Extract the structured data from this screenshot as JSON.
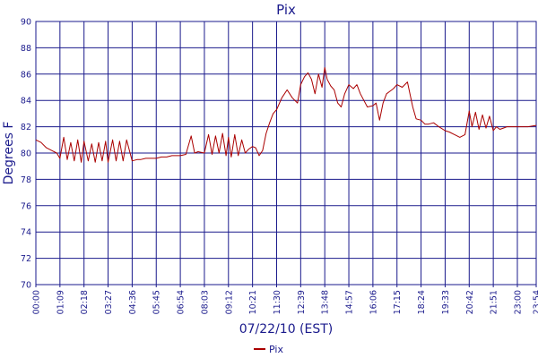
{
  "chart_data": {
    "type": "line",
    "title": "Pix",
    "xlabel": "07/22/10 (EST)",
    "ylabel": "Degrees F",
    "ylim": [
      70,
      90
    ],
    "yticks": [
      70,
      72,
      74,
      76,
      78,
      80,
      82,
      84,
      86,
      88,
      90
    ],
    "xlim": [
      "00:00",
      "23:54"
    ],
    "xticks": [
      "00:00",
      "01:09",
      "02:18",
      "03:27",
      "04:36",
      "05:45",
      "06:54",
      "08:03",
      "09:12",
      "10:21",
      "11:30",
      "12:39",
      "13:48",
      "14:57",
      "16:06",
      "17:15",
      "18:24",
      "19:33",
      "20:42",
      "21:51",
      "23:00",
      "23:54"
    ],
    "grid": true,
    "legend": "bottom-center",
    "colors": {
      "line": "#aa0000",
      "grid": "#1a1a8c",
      "text": "#1a1a8c"
    },
    "series": [
      {
        "name": "Pix",
        "x": [
          "00:00",
          "00:15",
          "00:30",
          "00:45",
          "01:00",
          "01:09",
          "01:20",
          "01:30",
          "01:40",
          "01:50",
          "02:00",
          "02:10",
          "02:18",
          "02:30",
          "02:40",
          "02:50",
          "03:00",
          "03:10",
          "03:20",
          "03:27",
          "03:40",
          "03:50",
          "04:00",
          "04:10",
          "04:20",
          "04:36",
          "04:50",
          "05:00",
          "05:15",
          "05:30",
          "05:45",
          "06:00",
          "06:15",
          "06:30",
          "06:54",
          "07:10",
          "07:25",
          "07:35",
          "07:45",
          "08:03",
          "08:15",
          "08:25",
          "08:35",
          "08:45",
          "08:55",
          "09:05",
          "09:12",
          "09:20",
          "09:30",
          "09:40",
          "09:50",
          "10:00",
          "10:10",
          "10:21",
          "10:30",
          "10:40",
          "10:50",
          "11:00",
          "11:10",
          "11:20",
          "11:30",
          "11:45",
          "12:00",
          "12:15",
          "12:30",
          "12:39",
          "12:50",
          "13:00",
          "13:10",
          "13:20",
          "13:30",
          "13:40",
          "13:48",
          "13:55",
          "14:05",
          "14:15",
          "14:25",
          "14:35",
          "14:45",
          "14:57",
          "15:10",
          "15:20",
          "15:30",
          "15:40",
          "15:50",
          "16:06",
          "16:15",
          "16:25",
          "16:35",
          "16:45",
          "16:55",
          "17:05",
          "17:15",
          "17:30",
          "17:45",
          "18:00",
          "18:10",
          "18:24",
          "18:35",
          "18:45",
          "19:00",
          "19:15",
          "19:33",
          "19:45",
          "20:00",
          "20:15",
          "20:30",
          "20:42",
          "20:50",
          "21:00",
          "21:10",
          "21:20",
          "21:30",
          "21:40",
          "21:51",
          "22:00",
          "22:10",
          "22:20",
          "22:30",
          "23:00",
          "23:30",
          "23:54"
        ],
        "values": [
          81.0,
          80.8,
          80.4,
          80.2,
          80.0,
          79.6,
          81.2,
          79.5,
          80.8,
          79.4,
          81.0,
          79.3,
          80.9,
          79.4,
          80.7,
          79.3,
          80.8,
          79.4,
          80.9,
          79.3,
          81.0,
          79.4,
          80.9,
          79.4,
          81.0,
          79.4,
          79.5,
          79.5,
          79.6,
          79.6,
          79.6,
          79.7,
          79.7,
          79.8,
          79.8,
          79.9,
          81.3,
          80.0,
          80.1,
          80.0,
          81.4,
          79.9,
          81.3,
          80.0,
          81.5,
          79.8,
          81.2,
          79.7,
          81.4,
          79.8,
          81.0,
          80.0,
          80.3,
          80.5,
          80.4,
          79.8,
          80.2,
          81.5,
          82.3,
          83.0,
          83.3,
          84.2,
          84.8,
          84.2,
          83.8,
          85.2,
          85.8,
          86.1,
          85.6,
          84.5,
          86.0,
          85.0,
          86.5,
          85.6,
          85.1,
          84.8,
          83.8,
          83.5,
          84.5,
          85.2,
          84.9,
          85.2,
          84.5,
          84.0,
          83.5,
          83.6,
          83.8,
          82.5,
          83.8,
          84.5,
          84.7,
          84.9,
          85.2,
          85.0,
          85.4,
          83.5,
          82.6,
          82.5,
          82.2,
          82.2,
          82.3,
          82.0,
          81.7,
          81.6,
          81.4,
          81.2,
          81.4,
          83.2,
          82.0,
          83.1,
          81.8,
          82.9,
          81.9,
          82.8,
          81.7,
          82.0,
          81.8,
          81.9,
          82.0,
          82.0,
          82.0,
          82.1
        ]
      }
    ]
  }
}
